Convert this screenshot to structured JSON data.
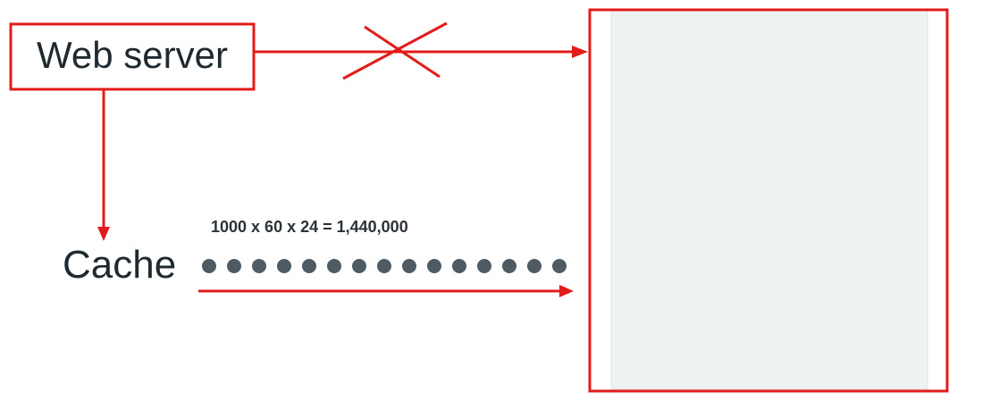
{
  "nodes": {
    "web_server": {
      "label": "Web server"
    },
    "cache": {
      "label": "Cache"
    }
  },
  "formula": "1000 x 60 x 24 = 1,440,000",
  "request_dots_count": 15,
  "colors": {
    "highlight": "#e31b1b",
    "text": "#1f2a30",
    "dot": "#4f5b63",
    "panel_fill": "#eef3f2",
    "panel_border": "#e1e1e1"
  },
  "connections": [
    {
      "from": "web_server",
      "to": "target_panel",
      "status": "blocked"
    },
    {
      "from": "web_server",
      "to": "cache",
      "status": "active"
    },
    {
      "from": "cache",
      "to": "target_panel",
      "status": "active"
    }
  ]
}
